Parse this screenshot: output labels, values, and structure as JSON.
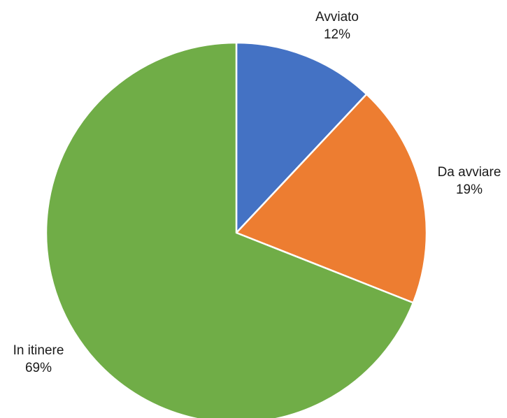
{
  "chart_data": {
    "type": "pie",
    "title": "",
    "start_angle_deg": 0,
    "direction": "clockwise",
    "slices": [
      {
        "label": "Avviato",
        "value": 12,
        "value_label": "12%",
        "color": "#4472C4"
      },
      {
        "label": "Da avviare",
        "value": 19,
        "value_label": "19%",
        "color": "#ED7D31"
      },
      {
        "label": "In itinere",
        "value": 69,
        "value_label": "69%",
        "color": "#70AD47"
      }
    ],
    "legend": "none",
    "data_labels": "outside, category name and percentage"
  }
}
